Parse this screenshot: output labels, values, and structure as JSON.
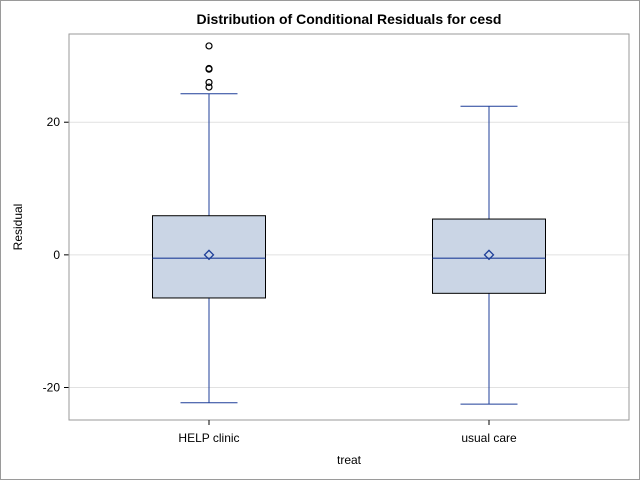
{
  "chart_data": {
    "type": "box",
    "title": "Distribution of Conditional Residuals for cesd",
    "xlabel": "treat",
    "ylabel": "Residual",
    "ylim": [
      -24.9,
      33.3
    ],
    "yticks": [
      -20,
      0,
      20
    ],
    "categories": [
      "HELP clinic",
      "usual care"
    ],
    "boxes": [
      {
        "category": "HELP clinic",
        "min": -22.3,
        "q1": -6.5,
        "median": -0.5,
        "q3": 5.9,
        "max": 24.3,
        "mean": 0.0,
        "outliers": [
          25.3,
          26.0,
          28.0,
          28.1,
          31.5
        ]
      },
      {
        "category": "usual care",
        "min": -22.5,
        "q1": -5.8,
        "median": -0.5,
        "q3": 5.4,
        "max": 22.4,
        "mean": 0.0,
        "outliers": []
      }
    ],
    "grid": true,
    "colors": {
      "box_fill": "#cad5e5",
      "box_border": "#000000",
      "whisker": "#1f3f99",
      "median": "#1f3f99",
      "mean_marker": "#1f3f99",
      "outlier": "#000000",
      "gridline": "#e1e1e1",
      "axis_frame": "#9a9a9a"
    }
  }
}
